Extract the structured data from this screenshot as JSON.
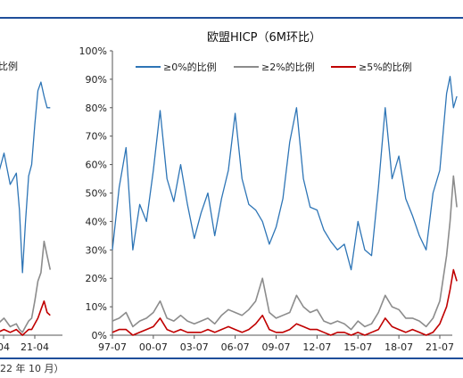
{
  "footer_note": "22 年 10 月）",
  "chart_data": [
    {
      "type": "line",
      "panel": "left-partial",
      "title": "",
      "legend_text": "比例",
      "x_tick_labels": [
        "04",
        "21-04"
      ],
      "ylim": [
        0,
        1
      ],
      "grid": false,
      "series": [
        {
          "color": "#2e75b6",
          "x": [
            "17-04",
            "17-10",
            "18-04",
            "18-10",
            "19-04",
            "19-10",
            "20-01",
            "20-04",
            "20-07",
            "20-10",
            "21-01",
            "21-04",
            "21-07",
            "21-10",
            "22-01",
            "22-04",
            "22-07"
          ],
          "y": [
            0.52,
            0.6,
            0.56,
            0.64,
            0.53,
            0.57,
            0.44,
            0.22,
            0.4,
            0.56,
            0.6,
            0.74,
            0.86,
            0.89,
            0.84,
            0.8,
            0.8
          ]
        },
        {
          "color": "#8c8c8c",
          "x": [
            "17-04",
            "17-10",
            "18-04",
            "18-10",
            "19-04",
            "19-10",
            "20-01",
            "20-04",
            "20-07",
            "20-10",
            "21-01",
            "21-04",
            "21-07",
            "21-10",
            "22-01",
            "22-04",
            "22-07"
          ],
          "y": [
            0.03,
            0.05,
            0.04,
            0.06,
            0.03,
            0.04,
            0.02,
            0.01,
            0.03,
            0.05,
            0.06,
            0.12,
            0.19,
            0.22,
            0.33,
            0.28,
            0.23
          ]
        },
        {
          "color": "#c00000",
          "x": [
            "17-04",
            "17-10",
            "18-04",
            "18-10",
            "19-04",
            "19-10",
            "20-01",
            "20-04",
            "20-07",
            "20-10",
            "21-01",
            "21-04",
            "21-07",
            "21-10",
            "22-01",
            "22-04",
            "22-07"
          ],
          "y": [
            0.01,
            0.02,
            0.01,
            0.02,
            0.01,
            0.02,
            0.01,
            0.0,
            0.01,
            0.02,
            0.02,
            0.04,
            0.06,
            0.09,
            0.12,
            0.08,
            0.07
          ]
        }
      ]
    },
    {
      "type": "line",
      "panel": "main",
      "title": "欧盟HICP（6M环比）",
      "x_tick_labels": [
        "97-07",
        "00-07",
        "03-07",
        "06-07",
        "09-07",
        "12-07",
        "15-07",
        "18-07",
        "21-07"
      ],
      "y_tick_labels": [
        "0%",
        "10%",
        "20%",
        "30%",
        "40%",
        "50%",
        "60%",
        "70%",
        "80%",
        "90%",
        "100%"
      ],
      "ylim": [
        0,
        1
      ],
      "grid": false,
      "legend_position": "top",
      "series": [
        {
          "name": "≥0%的比例",
          "color": "#2e75b6",
          "x": [
            "97-07",
            "98-01",
            "98-07",
            "99-01",
            "99-07",
            "00-01",
            "00-07",
            "01-01",
            "01-07",
            "02-01",
            "02-07",
            "03-01",
            "03-07",
            "04-01",
            "04-07",
            "05-01",
            "05-07",
            "06-01",
            "06-07",
            "07-01",
            "07-07",
            "08-01",
            "08-07",
            "09-01",
            "09-07",
            "10-01",
            "10-07",
            "11-01",
            "11-07",
            "12-01",
            "12-07",
            "13-01",
            "13-07",
            "14-01",
            "14-07",
            "15-01",
            "15-07",
            "16-01",
            "16-07",
            "17-01",
            "17-07",
            "18-01",
            "18-07",
            "19-01",
            "19-07",
            "20-01",
            "20-07",
            "21-01",
            "21-07",
            "22-01",
            "22-04",
            "22-07",
            "22-10"
          ],
          "y": [
            0.3,
            0.52,
            0.66,
            0.3,
            0.46,
            0.4,
            0.58,
            0.79,
            0.55,
            0.47,
            0.6,
            0.46,
            0.34,
            0.43,
            0.5,
            0.35,
            0.48,
            0.58,
            0.78,
            0.55,
            0.46,
            0.44,
            0.4,
            0.32,
            0.38,
            0.48,
            0.68,
            0.8,
            0.55,
            0.45,
            0.44,
            0.37,
            0.33,
            0.3,
            0.32,
            0.23,
            0.4,
            0.3,
            0.28,
            0.52,
            0.8,
            0.55,
            0.63,
            0.48,
            0.42,
            0.35,
            0.3,
            0.5,
            0.58,
            0.85,
            0.91,
            0.8,
            0.84
          ]
        },
        {
          "name": "≥2%的比例",
          "color": "#8c8c8c",
          "x": [
            "97-07",
            "98-01",
            "98-07",
            "99-01",
            "99-07",
            "00-01",
            "00-07",
            "01-01",
            "01-07",
            "02-01",
            "02-07",
            "03-01",
            "03-07",
            "04-01",
            "04-07",
            "05-01",
            "05-07",
            "06-01",
            "06-07",
            "07-01",
            "07-07",
            "08-01",
            "08-07",
            "09-01",
            "09-07",
            "10-01",
            "10-07",
            "11-01",
            "11-07",
            "12-01",
            "12-07",
            "13-01",
            "13-07",
            "14-01",
            "14-07",
            "15-01",
            "15-07",
            "16-01",
            "16-07",
            "17-01",
            "17-07",
            "18-01",
            "18-07",
            "19-01",
            "19-07",
            "20-01",
            "20-07",
            "21-01",
            "21-07",
            "22-01",
            "22-04",
            "22-07",
            "22-10"
          ],
          "y": [
            0.05,
            0.06,
            0.08,
            0.03,
            0.05,
            0.06,
            0.08,
            0.12,
            0.06,
            0.05,
            0.07,
            0.05,
            0.04,
            0.05,
            0.06,
            0.04,
            0.07,
            0.09,
            0.08,
            0.07,
            0.09,
            0.12,
            0.2,
            0.08,
            0.06,
            0.07,
            0.08,
            0.14,
            0.1,
            0.08,
            0.09,
            0.05,
            0.04,
            0.05,
            0.04,
            0.02,
            0.05,
            0.03,
            0.04,
            0.08,
            0.14,
            0.1,
            0.09,
            0.06,
            0.06,
            0.05,
            0.03,
            0.06,
            0.12,
            0.28,
            0.4,
            0.56,
            0.45
          ]
        },
        {
          "name": "≥5%的比例",
          "color": "#c00000",
          "x": [
            "97-07",
            "98-01",
            "98-07",
            "99-01",
            "99-07",
            "00-01",
            "00-07",
            "01-01",
            "01-07",
            "02-01",
            "02-07",
            "03-01",
            "03-07",
            "04-01",
            "04-07",
            "05-01",
            "05-07",
            "06-01",
            "06-07",
            "07-01",
            "07-07",
            "08-01",
            "08-07",
            "09-01",
            "09-07",
            "10-01",
            "10-07",
            "11-01",
            "11-07",
            "12-01",
            "12-07",
            "13-01",
            "13-07",
            "14-01",
            "14-07",
            "15-01",
            "15-07",
            "16-01",
            "16-07",
            "17-01",
            "17-07",
            "18-01",
            "18-07",
            "19-01",
            "19-07",
            "20-01",
            "20-07",
            "21-01",
            "21-07",
            "22-01",
            "22-04",
            "22-07",
            "22-10"
          ],
          "y": [
            0.01,
            0.02,
            0.02,
            0.0,
            0.01,
            0.02,
            0.03,
            0.06,
            0.02,
            0.01,
            0.02,
            0.01,
            0.01,
            0.01,
            0.02,
            0.01,
            0.02,
            0.03,
            0.02,
            0.01,
            0.02,
            0.04,
            0.07,
            0.02,
            0.01,
            0.01,
            0.02,
            0.04,
            0.03,
            0.02,
            0.02,
            0.01,
            0.0,
            0.01,
            0.01,
            0.0,
            0.01,
            0.0,
            0.01,
            0.02,
            0.06,
            0.03,
            0.02,
            0.01,
            0.02,
            0.01,
            0.0,
            0.01,
            0.04,
            0.1,
            0.16,
            0.23,
            0.19
          ]
        }
      ]
    }
  ]
}
